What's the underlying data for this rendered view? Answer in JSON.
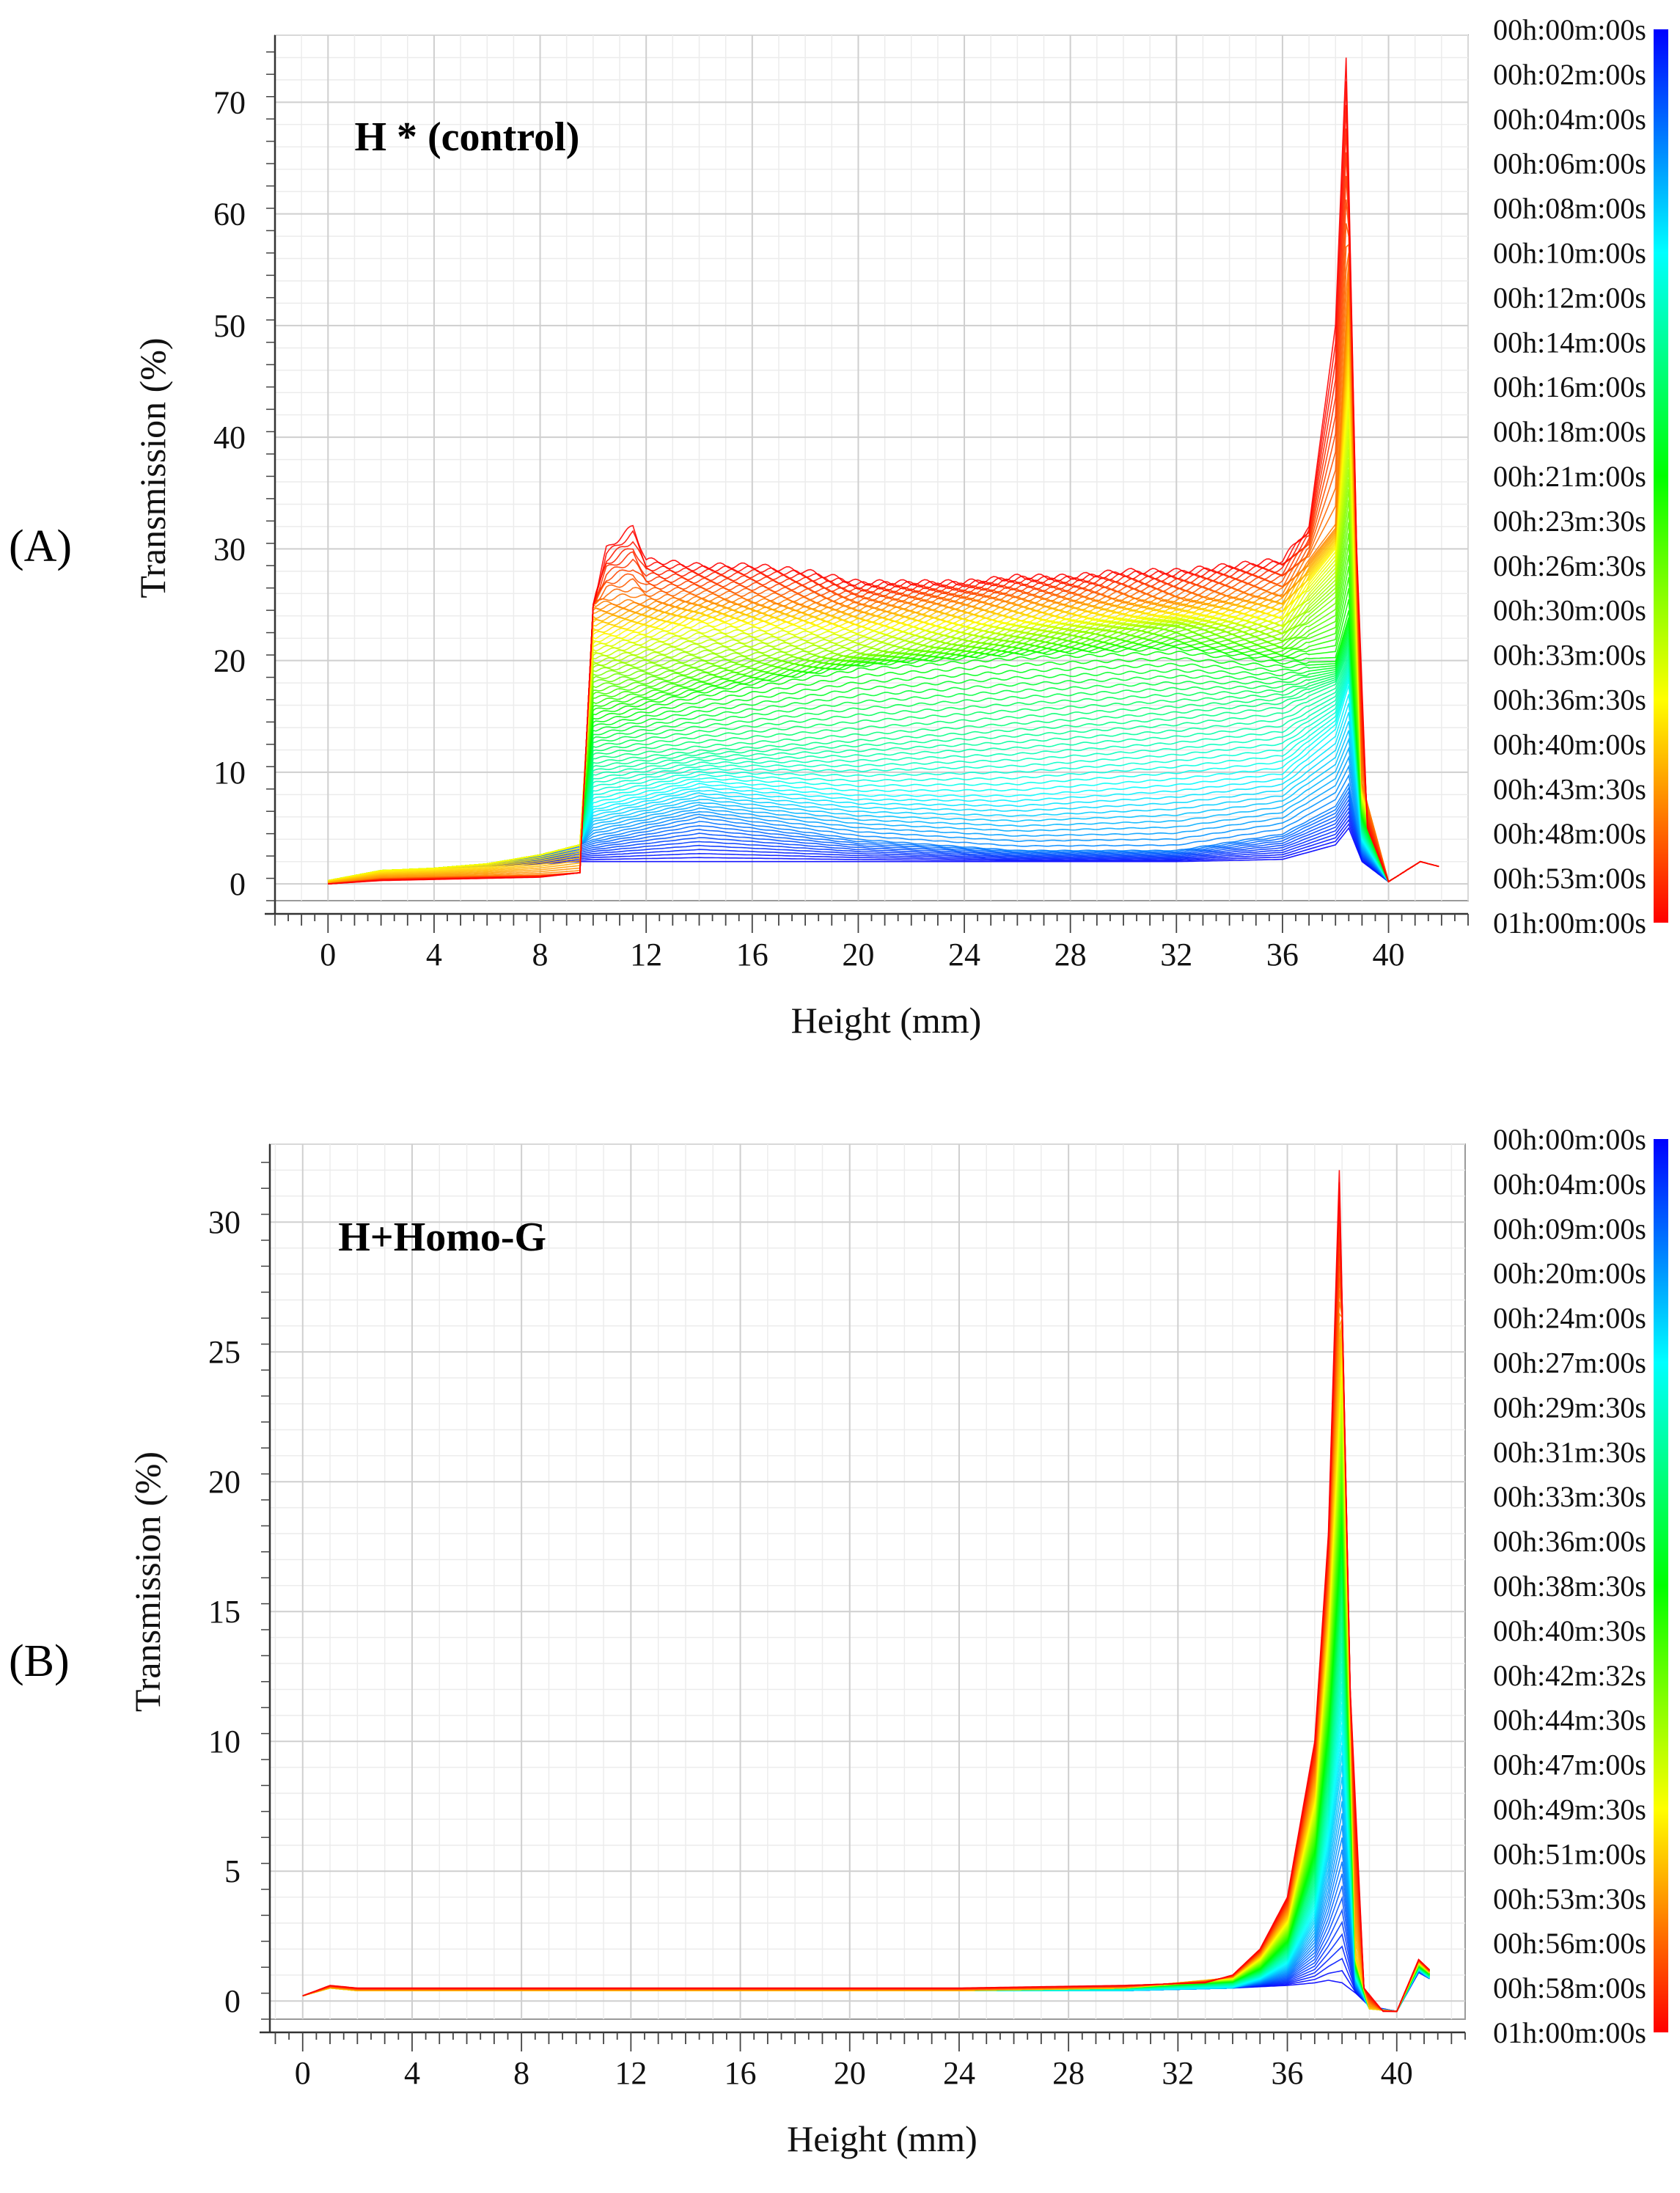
{
  "chart_data": [
    {
      "type": "line",
      "panel_label": "(A)",
      "title": "H * (control)",
      "xlabel": "Height (mm)",
      "ylabel": "Transmission (%)",
      "xlim": [
        -2,
        43
      ],
      "ylim": [
        -1.5,
        76
      ],
      "x_ticks": [
        0,
        4,
        8,
        12,
        16,
        20,
        24,
        28,
        32,
        36,
        40
      ],
      "y_ticks": [
        0,
        10,
        20,
        30,
        40,
        50,
        60,
        70
      ],
      "grid": true,
      "legend_position": "right colorbar",
      "colorscale": [
        "#0000ff",
        "#00ffff",
        "#00ff00",
        "#ffff00",
        "#ff0000"
      ],
      "legend": [
        "00h:00m:00s",
        "00h:02m:00s",
        "00h:04m:00s",
        "00h:06m:00s",
        "00h:08m:00s",
        "00h:10m:00s",
        "00h:12m:00s",
        "00h:14m:00s",
        "00h:16m:00s",
        "00h:18m:00s",
        "00h:21m:00s",
        "00h:23m:30s",
        "00h:26m:30s",
        "00h:30m:00s",
        "00h:33m:00s",
        "00h:36m:30s",
        "00h:40m:00s",
        "00h:43m:30s",
        "00h:48m:00s",
        "00h:53m:00s",
        "01h:00m:00s"
      ],
      "series": [
        {
          "name": "00h:00m:00s",
          "x": [
            0,
            2,
            4,
            6,
            8,
            9.5,
            10,
            14,
            20,
            26,
            32,
            36,
            38,
            38.5,
            39,
            40,
            41.2,
            42
          ],
          "y": [
            0.3,
            1.2,
            1.4,
            1.6,
            1.8,
            2,
            2,
            2,
            2,
            2,
            2,
            2.2,
            3.5,
            5,
            2,
            0.2,
            2,
            1.5
          ]
        },
        {
          "name": "00h:04m:00s",
          "x": [
            0,
            2,
            4,
            6,
            8,
            9.5,
            10,
            14,
            20,
            26,
            32,
            36,
            38,
            38.5,
            39,
            40,
            41.2,
            42
          ],
          "y": [
            0.3,
            1.2,
            1.4,
            1.8,
            2.6,
            3.5,
            4,
            6,
            4,
            3,
            3,
            4.5,
            7,
            9,
            3,
            0.2,
            2,
            1.5
          ]
        },
        {
          "name": "00h:10m:00s",
          "x": [
            0,
            2,
            4,
            6,
            8,
            9.5,
            10,
            14,
            20,
            26,
            32,
            36,
            38,
            38.5,
            39,
            40,
            41.2,
            42
          ],
          "y": [
            0.3,
            1.2,
            1.4,
            1.8,
            2.6,
            3.5,
            7,
            9,
            8,
            8,
            9,
            10,
            14,
            18,
            4,
            0.2,
            2,
            1.5
          ]
        },
        {
          "name": "00h:18m:00s",
          "x": [
            0,
            2,
            4,
            6,
            8,
            9.5,
            10,
            14,
            20,
            26,
            32,
            36,
            38,
            38.5,
            39,
            40,
            41.2,
            42
          ],
          "y": [
            0.3,
            1.2,
            1.4,
            1.8,
            2.6,
            3.5,
            11,
            12,
            13,
            14,
            15,
            16,
            18,
            21,
            5,
            0.2,
            2,
            1.5
          ]
        },
        {
          "name": "00h:26m:30s",
          "x": [
            0,
            2,
            4,
            6,
            8,
            9.5,
            10,
            14,
            20,
            26,
            32,
            36,
            38,
            38.5,
            39,
            40,
            41.2,
            42
          ],
          "y": [
            0.3,
            1.2,
            1.4,
            1.8,
            2.6,
            3.5,
            15,
            17,
            19.5,
            20.5,
            21,
            20,
            20,
            24,
            6,
            0.2,
            2,
            1.5
          ]
        },
        {
          "name": "00h:33m:00s",
          "x": [
            0,
            2,
            4,
            6,
            8,
            9.5,
            10,
            14,
            20,
            26,
            32,
            36,
            38,
            38.5,
            39,
            40,
            41.2,
            42
          ],
          "y": [
            0.3,
            1.2,
            1.4,
            1.8,
            2.6,
            3.5,
            19,
            20,
            20.5,
            22,
            23,
            22,
            26,
            35,
            7,
            0.2,
            2,
            1.5
          ]
        },
        {
          "name": "00h:40m:00s",
          "x": [
            0,
            2,
            4,
            6,
            8,
            9.5,
            10,
            14,
            20,
            26,
            32,
            36,
            38,
            38.5,
            39,
            40,
            41.2,
            42
          ],
          "y": [
            0.3,
            1.2,
            1.4,
            1.8,
            2.6,
            3.5,
            22,
            23.5,
            23,
            23.5,
            24,
            24,
            30,
            45,
            8,
            0.2,
            2,
            1.5
          ]
        },
        {
          "name": "00h:48m:00s",
          "x": [
            0,
            2,
            4,
            6,
            8,
            9.5,
            10,
            14,
            20,
            26,
            32,
            36,
            38,
            38.5,
            39,
            40,
            41.2,
            42
          ],
          "y": [
            0,
            0.5,
            0.6,
            0.7,
            0.8,
            1,
            25,
            25.5,
            25,
            25.5,
            25.5,
            26,
            32,
            55,
            9,
            0.2,
            2,
            1.5
          ]
        },
        {
          "name": "01h:00m:00s",
          "x": [
            0,
            2,
            4,
            6,
            8,
            9.5,
            10,
            10.5,
            11.5,
            12,
            14,
            16,
            18,
            20,
            22,
            24,
            26,
            28,
            30,
            32,
            34,
            36,
            37,
            38,
            38.4,
            38.8,
            39.2,
            40,
            41.2,
            42
          ],
          "y": [
            0,
            0.3,
            0.4,
            0.5,
            0.6,
            1,
            25,
            30,
            32,
            29,
            28.5,
            28.5,
            28,
            27,
            27,
            27,
            27.5,
            27.5,
            28,
            28,
            28.5,
            29,
            32,
            50,
            74,
            30,
            5,
            0.2,
            2,
            1.5
          ]
        }
      ]
    },
    {
      "type": "line",
      "panel_label": "(B)",
      "title": "H+Homo-G",
      "xlabel": "Height (mm)",
      "ylabel": "Transmission (%)",
      "xlim": [
        -1.2,
        42.5
      ],
      "ylim": [
        -0.7,
        33
      ],
      "x_ticks": [
        0,
        4,
        8,
        12,
        16,
        20,
        24,
        28,
        32,
        36,
        40
      ],
      "y_ticks": [
        0,
        5,
        10,
        15,
        20,
        25,
        30
      ],
      "grid": true,
      "legend_position": "right colorbar",
      "colorscale": [
        "#0000ff",
        "#00ffff",
        "#00ff00",
        "#ffff00",
        "#ff0000"
      ],
      "legend": [
        "00h:00m:00s",
        "00h:04m:00s",
        "00h:09m:00s",
        "00h:20m:00s",
        "00h:24m:00s",
        "00h:27m:00s",
        "00h:29m:30s",
        "00h:31m:30s",
        "00h:33m:30s",
        "00h:36m:00s",
        "00h:38m:30s",
        "00h:40m:30s",
        "00h:42m:32s",
        "00h:44m:30s",
        "00h:47m:00s",
        "00h:49m:30s",
        "00h:51m:00s",
        "00h:53m:30s",
        "00h:56m:00s",
        "00h:58m:00s",
        "01h:00m:00s"
      ],
      "series": [
        {
          "name": "00h:00m:00s",
          "x": [
            0,
            1,
            2,
            4,
            8,
            16,
            24,
            30,
            34,
            36,
            37,
            37.5,
            38,
            38.5,
            39,
            40,
            40.8,
            41.3
          ],
          "y": [
            0.2,
            0.5,
            0.4,
            0.4,
            0.4,
            0.4,
            0.4,
            0.4,
            0.5,
            0.6,
            0.7,
            0.8,
            0.7,
            0.3,
            -0.2,
            -0.4,
            1.1,
            0.8
          ]
        },
        {
          "name": "00h:24m:00s",
          "x": [
            0,
            1,
            2,
            4,
            8,
            16,
            24,
            30,
            34,
            35,
            36,
            37,
            37.5,
            38,
            38.5,
            39,
            40,
            40.8,
            41.3
          ],
          "y": [
            0.2,
            0.5,
            0.4,
            0.4,
            0.4,
            0.4,
            0.4,
            0.4,
            0.5,
            0.8,
            1.3,
            3,
            5.5,
            9,
            0.8,
            -0.3,
            -0.4,
            1.2,
            0.8
          ]
        },
        {
          "name": "00h:36m:00s",
          "x": [
            0,
            1,
            2,
            4,
            8,
            16,
            24,
            30,
            34,
            35,
            36,
            37,
            37.5,
            38,
            38.5,
            39,
            40,
            40.8,
            41.3
          ],
          "y": [
            0.2,
            0.5,
            0.4,
            0.4,
            0.4,
            0.4,
            0.4,
            0.5,
            0.7,
            1.1,
            2,
            5,
            9,
            16,
            1.2,
            -0.3,
            -0.4,
            1.3,
            0.9
          ]
        },
        {
          "name": "00h:44m:30s",
          "x": [
            0,
            1,
            2,
            4,
            8,
            16,
            24,
            30,
            34,
            35,
            36,
            37,
            37.5,
            38,
            38.5,
            39,
            40,
            40.8,
            41.3
          ],
          "y": [
            0.2,
            0.5,
            0.4,
            0.4,
            0.4,
            0.4,
            0.4,
            0.5,
            0.8,
            1.4,
            2.6,
            6.5,
            12,
            21,
            1.5,
            -0.3,
            -0.4,
            1.4,
            1
          ]
        },
        {
          "name": "00h:51m:00s",
          "x": [
            0,
            1,
            2,
            4,
            8,
            16,
            24,
            30,
            34,
            35,
            36,
            37,
            37.5,
            38,
            38.5,
            39,
            40,
            40.8,
            41.3
          ],
          "y": [
            0.2,
            0.5,
            0.4,
            0.4,
            0.4,
            0.4,
            0.4,
            0.5,
            0.9,
            1.7,
            3.2,
            8,
            15,
            26,
            1.7,
            -0.3,
            -0.4,
            1.5,
            1
          ]
        },
        {
          "name": "01h:00m:00s",
          "x": [
            0,
            1,
            2,
            4,
            8,
            16,
            24,
            30,
            33,
            34,
            35,
            36,
            37,
            37.5,
            37.9,
            38.3,
            38.8,
            39.5,
            40,
            40.8,
            41.3
          ],
          "y": [
            0.2,
            0.6,
            0.5,
            0.5,
            0.5,
            0.5,
            0.5,
            0.6,
            0.7,
            1,
            2,
            4,
            10,
            18,
            32,
            12,
            0.5,
            -0.4,
            -0.4,
            1.6,
            1.1
          ]
        }
      ]
    }
  ]
}
